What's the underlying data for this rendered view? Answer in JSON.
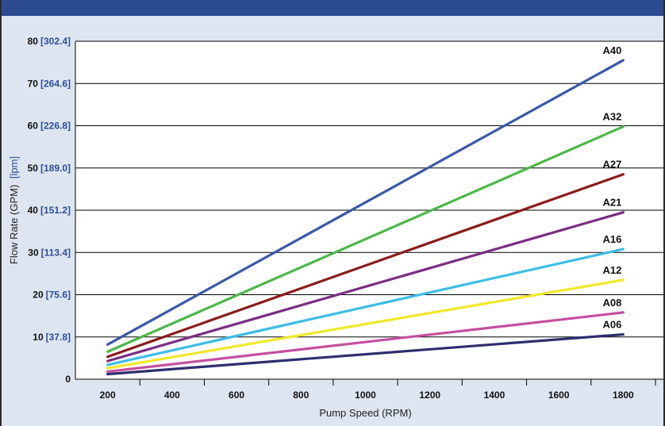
{
  "chart_data": {
    "type": "line",
    "xlabel": "Pump Speed (RPM)",
    "ylabel_main": "Flow Rate (GPM)",
    "ylabel_metric": "[lpm]",
    "xlim": [
      100,
      1900
    ],
    "ylim": [
      0,
      80
    ],
    "x_ticks": [
      200,
      400,
      600,
      800,
      1000,
      1200,
      1400,
      1600,
      1800
    ],
    "y_ticks": [
      {
        "value": 0,
        "label": "0",
        "metric": ""
      },
      {
        "value": 10,
        "label": "10",
        "metric": "[37.8]"
      },
      {
        "value": 20,
        "label": "20",
        "metric": "[75.6]"
      },
      {
        "value": 30,
        "label": "30",
        "metric": "[113.4]"
      },
      {
        "value": 40,
        "label": "40",
        "metric": "[151.2]"
      },
      {
        "value": 50,
        "label": "50",
        "metric": "[189.0]"
      },
      {
        "value": 60,
        "label": "60",
        "metric": "[226.8]"
      },
      {
        "value": 70,
        "label": "70",
        "metric": "[264.6]"
      },
      {
        "value": 80,
        "label": "80",
        "metric": "[302.4]"
      }
    ],
    "grid": "horizontal",
    "series": [
      {
        "name": "A40",
        "color": "#3a59a8",
        "x": [
          200,
          1800
        ],
        "y": [
          8.2,
          75.5
        ]
      },
      {
        "name": "A32",
        "color": "#4db848",
        "x": [
          200,
          1800
        ],
        "y": [
          6.5,
          59.8
        ]
      },
      {
        "name": "A27",
        "color": "#8b1c1c",
        "x": [
          200,
          1800
        ],
        "y": [
          5.3,
          48.5
        ]
      },
      {
        "name": "A21",
        "color": "#7b2d83",
        "x": [
          200,
          1800
        ],
        "y": [
          4.3,
          39.5
        ]
      },
      {
        "name": "A16",
        "color": "#3cbde8",
        "x": [
          200,
          1800
        ],
        "y": [
          3.4,
          30.8
        ]
      },
      {
        "name": "A12",
        "color": "#f2e82a",
        "x": [
          200,
          1800
        ],
        "y": [
          2.6,
          23.5
        ]
      },
      {
        "name": "A08",
        "color": "#c44f9f",
        "x": [
          200,
          1800
        ],
        "y": [
          1.8,
          15.8
        ]
      },
      {
        "name": "A06",
        "color": "#2e2f6e",
        "x": [
          200,
          1800
        ],
        "y": [
          1.2,
          10.6
        ]
      }
    ]
  }
}
